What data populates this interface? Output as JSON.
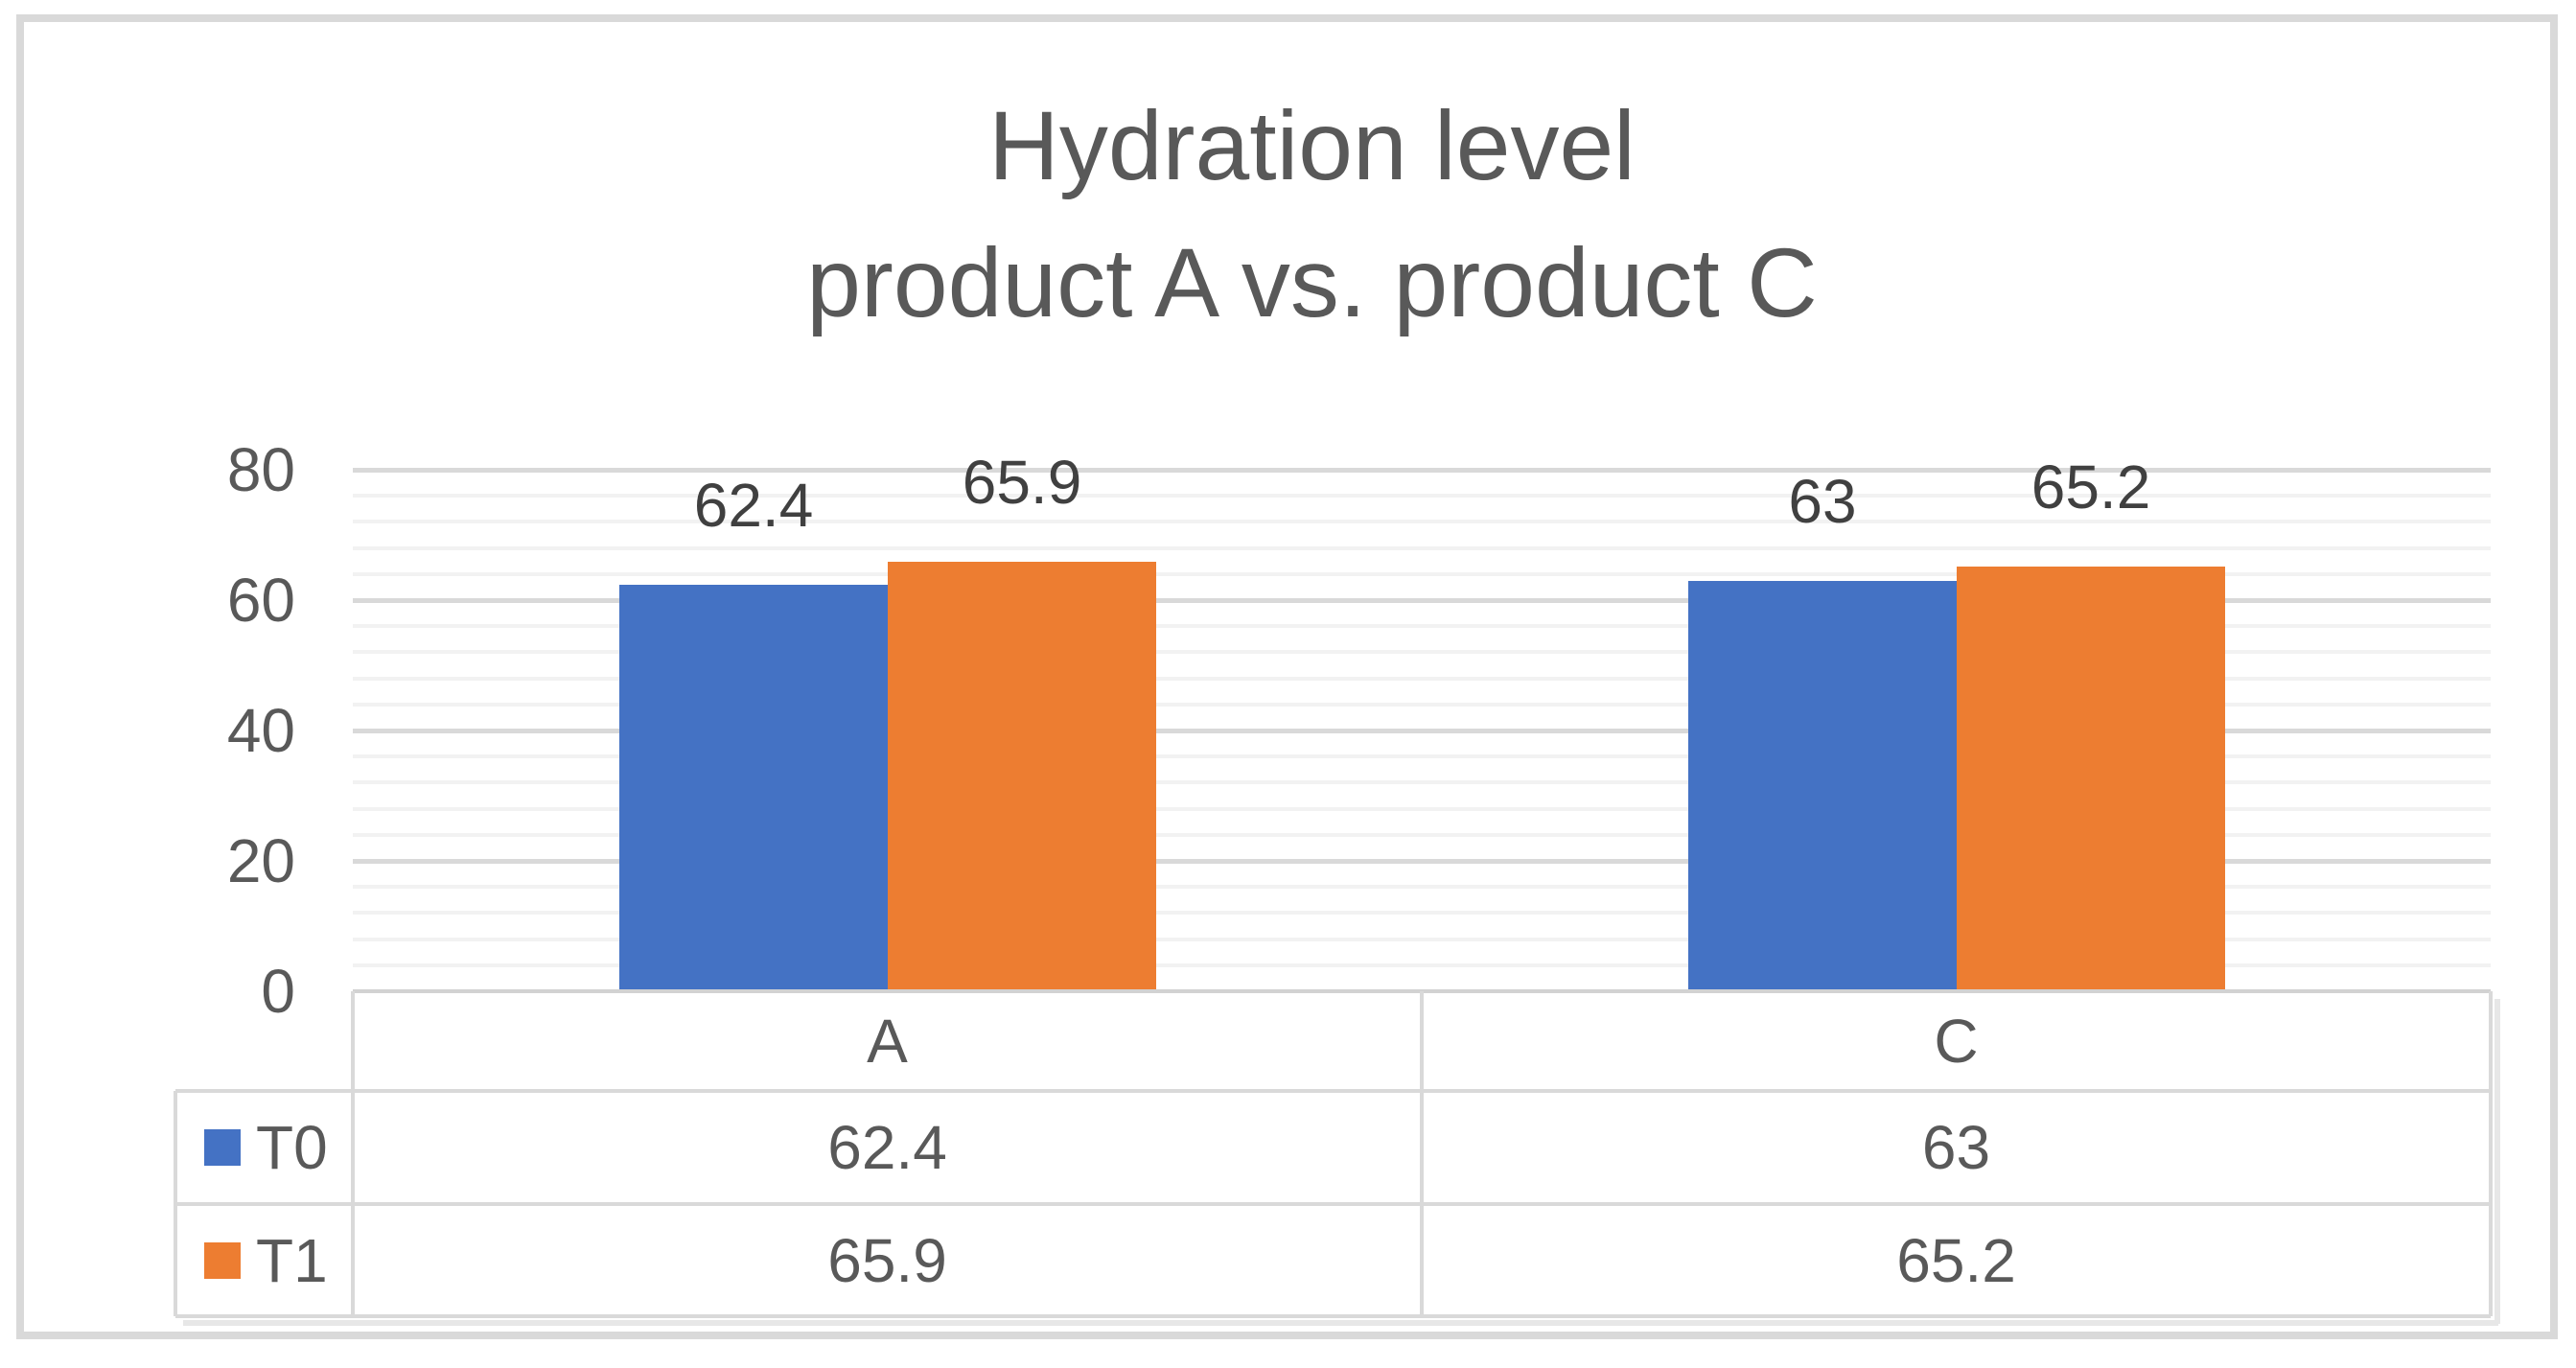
{
  "title": {
    "line1": "Hydration level",
    "line2": "product A vs. product C"
  },
  "chart_data": {
    "type": "bar",
    "title": "Hydration level product A vs. product C",
    "categories": [
      "A",
      "C"
    ],
    "series": [
      {
        "name": "T0",
        "color": "#4472C4",
        "values": [
          62.4,
          63
        ]
      },
      {
        "name": "T1",
        "color": "#ED7D31",
        "values": [
          65.9,
          65.2
        ]
      }
    ],
    "data_labels": [
      "62.4",
      "65.9",
      "63",
      "65.2"
    ],
    "ylim": [
      0,
      80
    ],
    "yticks": [
      "0",
      "20",
      "40",
      "60",
      "80"
    ],
    "ytick_step": 20,
    "minor_tick_step": 4,
    "grid": "horizontal major + minor",
    "legend_position": "data-table left column",
    "data_table": {
      "header_row": [
        "A",
        "C"
      ],
      "rows": [
        {
          "legend": "T0",
          "values": [
            "62.4",
            "63"
          ]
        },
        {
          "legend": "T1",
          "values": [
            "65.9",
            "65.2"
          ]
        }
      ]
    }
  },
  "colors": {
    "series_t0": "#4472C4",
    "series_t1": "#ED7D31",
    "title_text": "#595959",
    "axis_text": "#595959",
    "data_label_text": "#404040",
    "grid_major": "#D9D9D9",
    "grid_minor": "#F2F2F2",
    "table_border": "#D9D9D9",
    "frame_border": "#D9D9D9"
  }
}
